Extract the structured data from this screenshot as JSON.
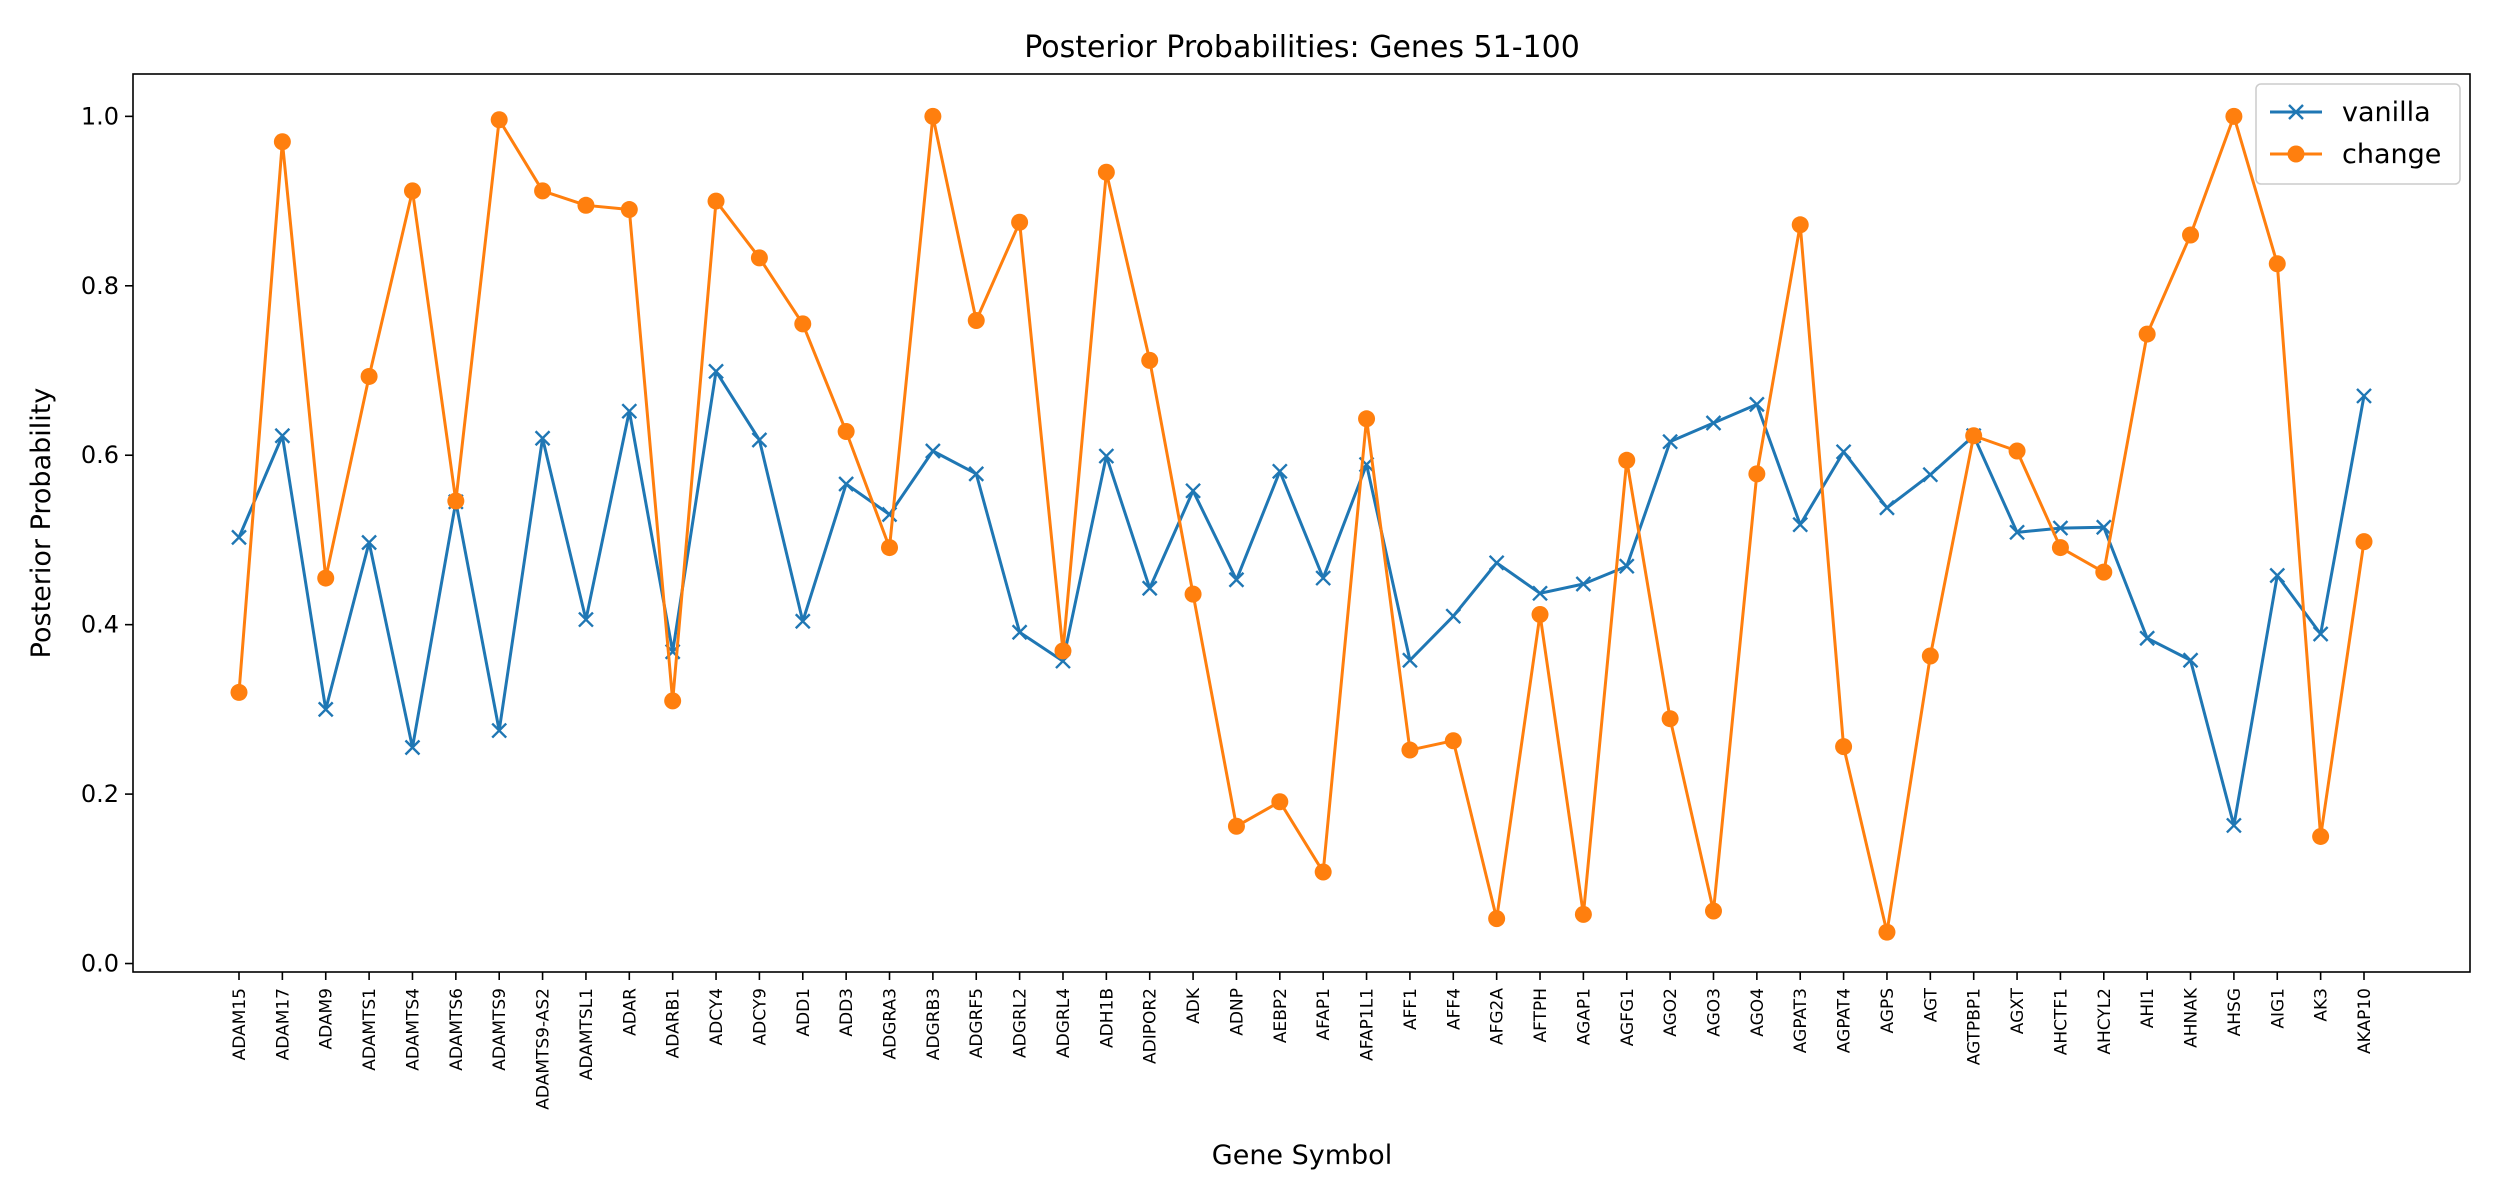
{
  "chart_data": {
    "type": "line",
    "title": "Posterior Probabilities: Genes 51-100",
    "xlabel": "Gene Symbol",
    "ylabel": "Posterior Probability",
    "ylim": [
      -0.01,
      1.05
    ],
    "yticks": [
      "0.0",
      "0.2",
      "0.4",
      "0.6",
      "0.8",
      "1.0"
    ],
    "grid": false,
    "legend_position": "top-right",
    "categories": [
      "ADAM15",
      "ADAM17",
      "ADAM9",
      "ADAMTS1",
      "ADAMTS4",
      "ADAMTS6",
      "ADAMTS9",
      "ADAMTS9-AS2",
      "ADAMTSL1",
      "ADAR",
      "ADARB1",
      "ADCY4",
      "ADCY9",
      "ADD1",
      "ADD3",
      "ADGRA3",
      "ADGRB3",
      "ADGRF5",
      "ADGRL2",
      "ADGRL4",
      "ADH1B",
      "ADIPOR2",
      "ADK",
      "ADNP",
      "AEBP2",
      "AFAP1",
      "AFAP1L1",
      "AFF1",
      "AFF4",
      "AFG2A",
      "AFTPH",
      "AGAP1",
      "AGFG1",
      "AGO2",
      "AGO3",
      "AGO4",
      "AGPAT3",
      "AGPAT4",
      "AGPS",
      "AGT",
      "AGTPBP1",
      "AGXT",
      "AHCTF1",
      "AHCYL2",
      "AHI1",
      "AHNAK",
      "AHSG",
      "AIG1",
      "AK3",
      "AKAP10"
    ],
    "series": [
      {
        "name": "vanilla",
        "color": "#1f77b4",
        "marker": "x",
        "values": [
          0.503,
          0.623,
          0.3,
          0.497,
          0.255,
          0.545,
          0.275,
          0.62,
          0.406,
          0.652,
          0.368,
          0.699,
          0.618,
          0.404,
          0.566,
          0.53,
          0.605,
          0.578,
          0.391,
          0.357,
          0.599,
          0.443,
          0.558,
          0.453,
          0.581,
          0.455,
          0.589,
          0.358,
          0.41,
          0.473,
          0.437,
          0.448,
          0.469,
          0.616,
          0.638,
          0.66,
          0.518,
          0.604,
          0.538,
          0.577,
          0.623,
          0.509,
          0.514,
          0.515,
          0.384,
          0.358,
          0.163,
          0.458,
          0.389,
          0.67
        ]
      },
      {
        "name": "change",
        "color": "#ff7f0e",
        "marker": "o",
        "values": [
          0.32,
          0.97,
          0.455,
          0.693,
          0.912,
          0.546,
          0.996,
          0.912,
          0.895,
          0.89,
          0.31,
          0.9,
          0.833,
          0.755,
          0.628,
          0.491,
          1.0,
          0.759,
          0.875,
          0.369,
          0.934,
          0.712,
          0.436,
          0.162,
          0.191,
          0.108,
          0.643,
          0.252,
          0.263,
          0.053,
          0.412,
          0.058,
          0.594,
          0.289,
          0.062,
          0.578,
          0.872,
          0.256,
          0.037,
          0.363,
          0.623,
          0.605,
          0.491,
          0.462,
          0.743,
          0.86,
          1.0,
          0.826,
          0.15,
          0.498
        ]
      }
    ]
  }
}
